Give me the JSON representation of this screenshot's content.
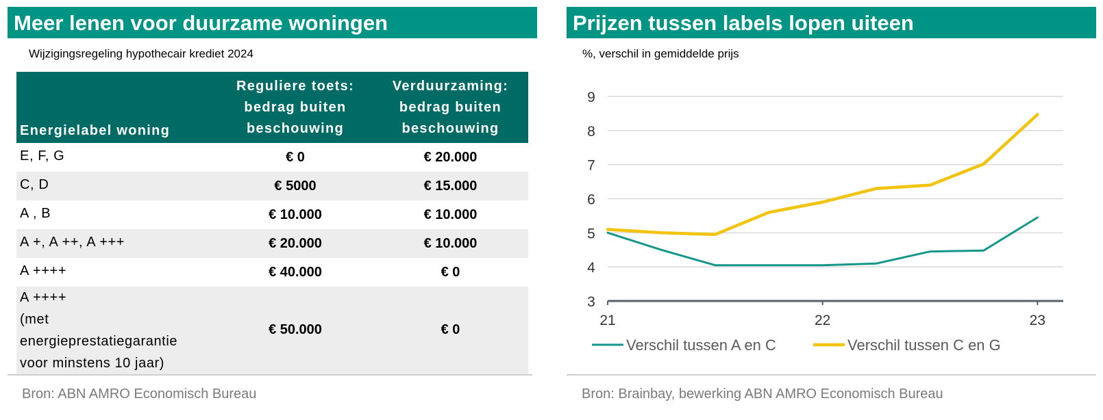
{
  "left_panel": {
    "title": "Meer lenen voor duurzame woningen",
    "subtitle": "Wijzigingsregeling hypothecair krediet 2024",
    "table": {
      "headers": [
        "Energielabel woning",
        "Reguliere toets: bedrag buiten beschouwing",
        "Verduurzaming: bedrag buiten beschouwing"
      ],
      "header_lines": {
        "c1": [
          "Reguliere toets:",
          "bedrag buiten",
          "beschouwing"
        ],
        "c2": [
          "Verduurzaming:",
          "bedrag buiten",
          "beschouwing"
        ]
      },
      "rows": [
        {
          "label": [
            "E, F, G"
          ],
          "regulier": "€ 0",
          "verduurzaming": "€ 20.000"
        },
        {
          "label": [
            "C, D"
          ],
          "regulier": "€ 5000",
          "verduurzaming": "€ 15.000"
        },
        {
          "label": [
            "A , B"
          ],
          "regulier": "€ 10.000",
          "verduurzaming": "€ 10.000"
        },
        {
          "label": [
            "A +, A ++, A +++"
          ],
          "regulier": "€ 20.000",
          "verduurzaming": "€ 10.000"
        },
        {
          "label": [
            "A ++++"
          ],
          "regulier": "€ 40.000",
          "verduurzaming": "€ 0"
        },
        {
          "label": [
            "A ++++",
            "(met",
            "energieprestatiegarantie",
            "voor minstens 10 jaar)"
          ],
          "regulier": "€ 50.000",
          "verduurzaming": "€ 0"
        }
      ]
    },
    "source": "Bron: ABN AMRO Economisch Bureau"
  },
  "right_panel": {
    "title": "Prijzen tussen labels lopen uiteen",
    "subtitle": "%, verschil in gemiddelde prijs",
    "source": "Bron: Brainbay, bewerking ABN AMRO Economisch Bureau"
  },
  "colors": {
    "title_bar": "#009484",
    "table_header": "#006a64",
    "row_alt": "#ededed",
    "series_a_c": "#14968a",
    "series_c_g": "#f2c30f",
    "source_text": "#7a7a7a"
  },
  "chart_data": {
    "type": "line",
    "title": "Prijzen tussen labels lopen uiteen",
    "ylabel": "%, verschil in gemiddelde prijs",
    "ylim": [
      3,
      9
    ],
    "yticks": [
      3,
      4,
      5,
      6,
      7,
      8,
      9
    ],
    "xlim": [
      21,
      23.12
    ],
    "xticks": [
      21,
      22,
      23
    ],
    "x": [
      21.0,
      21.25,
      21.5,
      21.75,
      22.0,
      22.25,
      22.5,
      22.75,
      23.0
    ],
    "series": [
      {
        "name": "Verschil tussen A en C",
        "values": [
          5.0,
          4.5,
          4.05,
          4.05,
          4.05,
          4.1,
          4.45,
          4.48,
          5.45
        ]
      },
      {
        "name": "Verschil tussen C en G",
        "values": [
          5.1,
          5.0,
          4.95,
          5.6,
          5.9,
          6.3,
          6.4,
          7.02,
          8.47
        ]
      }
    ],
    "grid": true,
    "legend": "bottom"
  }
}
